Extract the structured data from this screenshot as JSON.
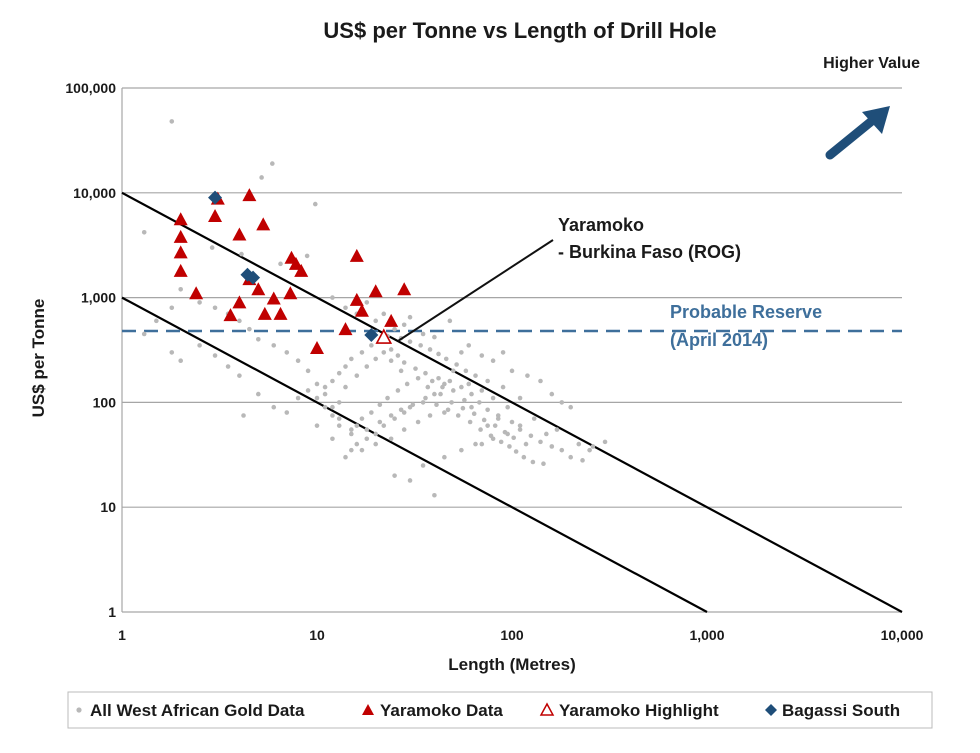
{
  "chart_data": {
    "type": "scatter",
    "title": "US$ per Tonne vs Length of Drill Hole",
    "xlabel": "Length (Metres)",
    "ylabel": "US$ per Tonne",
    "x_scale": "log",
    "y_scale": "log",
    "xlim": [
      1,
      10000
    ],
    "ylim": [
      1,
      100000
    ],
    "x_ticks": [
      "1",
      "10",
      "100",
      "1,000",
      "10,000"
    ],
    "y_ticks": [
      "1",
      "10",
      "100",
      "1,000",
      "10,000",
      "100,000"
    ],
    "x_tick_values": [
      1,
      10,
      100,
      1000,
      10000
    ],
    "y_tick_values": [
      1,
      10,
      100,
      1000,
      10000,
      100000
    ],
    "grid": "horizontal",
    "legend_position": "bottom",
    "annotations": {
      "higher_value": "Higher Value",
      "yaramoko_line1": "Yaramoko",
      "yaramoko_line2": "- Burkina Faso (ROG)",
      "reserve_line1": "Probable Reserve",
      "reserve_line2": "(April 2014)"
    },
    "reference_lines": [
      {
        "points": [
          [
            1,
            10000
          ],
          [
            10000,
            1
          ]
        ],
        "color": "#000000"
      },
      {
        "points": [
          [
            1,
            1000
          ],
          [
            1000,
            1
          ]
        ],
        "color": "#000000"
      }
    ],
    "reserve_value": 480,
    "series": [
      {
        "name": "All West African Gold Data",
        "marker": "dot",
        "color": "#b8b8b8",
        "points": [
          [
            1.8,
            48000
          ],
          [
            5.9,
            19000
          ],
          [
            5.2,
            14000
          ],
          [
            9.8,
            7800
          ],
          [
            1.3,
            4200
          ],
          [
            2.9,
            3000
          ],
          [
            4.1,
            2600
          ],
          [
            6.5,
            2100
          ],
          [
            8.9,
            2500
          ],
          [
            12,
            1000
          ],
          [
            14,
            800
          ],
          [
            18,
            900
          ],
          [
            16,
            700
          ],
          [
            20,
            600
          ],
          [
            22,
            700
          ],
          [
            25,
            500
          ],
          [
            28,
            550
          ],
          [
            30,
            650
          ],
          [
            35,
            450
          ],
          [
            40,
            420
          ],
          [
            48,
            600
          ],
          [
            55,
            300
          ],
          [
            60,
            350
          ],
          [
            70,
            280
          ],
          [
            80,
            250
          ],
          [
            90,
            300
          ],
          [
            100,
            200
          ],
          [
            120,
            180
          ],
          [
            140,
            160
          ],
          [
            160,
            120
          ],
          [
            180,
            100
          ],
          [
            200,
            90
          ],
          [
            130,
            70
          ],
          [
            110,
            60
          ],
          [
            95,
            50
          ],
          [
            80,
            45
          ],
          [
            70,
            40
          ],
          [
            150,
            50
          ],
          [
            170,
            55
          ],
          [
            220,
            40
          ],
          [
            260,
            38
          ],
          [
            300,
            42
          ],
          [
            50,
            200
          ],
          [
            45,
            150
          ],
          [
            40,
            120
          ],
          [
            35,
            100
          ],
          [
            30,
            90
          ],
          [
            28,
            80
          ],
          [
            25,
            70
          ],
          [
            22,
            60
          ],
          [
            20,
            50
          ],
          [
            18,
            45
          ],
          [
            16,
            40
          ],
          [
            15,
            35
          ],
          [
            14,
            30
          ],
          [
            25,
            20
          ],
          [
            40,
            13
          ],
          [
            30,
            18
          ],
          [
            35,
            25
          ],
          [
            45,
            30
          ],
          [
            55,
            35
          ],
          [
            65,
            40
          ],
          [
            75,
            60
          ],
          [
            85,
            70
          ],
          [
            95,
            90
          ],
          [
            60,
            150
          ],
          [
            70,
            130
          ],
          [
            80,
            110
          ],
          [
            50,
            130
          ],
          [
            45,
            80
          ],
          [
            38,
            75
          ],
          [
            33,
            65
          ],
          [
            28,
            55
          ],
          [
            24,
            45
          ],
          [
            20,
            40
          ],
          [
            17,
            35
          ],
          [
            15,
            55
          ],
          [
            13,
            70
          ],
          [
            12,
            90
          ],
          [
            11,
            120
          ],
          [
            10,
            150
          ],
          [
            9,
            200
          ],
          [
            8,
            250
          ],
          [
            7,
            300
          ],
          [
            6,
            350
          ],
          [
            5,
            400
          ],
          [
            4.5,
            500
          ],
          [
            4,
            600
          ],
          [
            3.5,
            700
          ],
          [
            3,
            800
          ],
          [
            2.5,
            900
          ],
          [
            2,
            1200
          ],
          [
            1.8,
            800
          ],
          [
            1.5,
            600
          ],
          [
            1.3,
            450
          ],
          [
            1.8,
            300
          ],
          [
            2,
            250
          ],
          [
            2.5,
            350
          ],
          [
            3,
            280
          ],
          [
            3.5,
            220
          ],
          [
            4,
            180
          ],
          [
            4.2,
            75
          ],
          [
            5,
            120
          ],
          [
            6,
            90
          ],
          [
            7,
            80
          ],
          [
            8,
            110
          ],
          [
            9,
            130
          ],
          [
            10,
            60
          ],
          [
            12,
            45
          ],
          [
            13,
            100
          ],
          [
            14,
            140
          ],
          [
            16,
            180
          ],
          [
            18,
            220
          ],
          [
            20,
            260
          ],
          [
            22,
            300
          ],
          [
            24,
            320
          ],
          [
            26,
            280
          ],
          [
            28,
            240
          ],
          [
            32,
            210
          ],
          [
            36,
            190
          ],
          [
            42,
            170
          ],
          [
            48,
            160
          ],
          [
            55,
            140
          ],
          [
            62,
            120
          ],
          [
            68,
            100
          ],
          [
            75,
            85
          ],
          [
            85,
            75
          ],
          [
            100,
            65
          ],
          [
            110,
            55
          ],
          [
            125,
            48
          ],
          [
            140,
            42
          ],
          [
            160,
            38
          ],
          [
            180,
            35
          ],
          [
            200,
            30
          ],
          [
            230,
            28
          ],
          [
            250,
            35
          ],
          [
            110,
            110
          ],
          [
            90,
            140
          ],
          [
            75,
            160
          ],
          [
            65,
            180
          ],
          [
            58,
            200
          ],
          [
            52,
            230
          ],
          [
            46,
            260
          ],
          [
            42,
            290
          ],
          [
            38,
            320
          ],
          [
            34,
            350
          ],
          [
            30,
            380
          ],
          [
            27,
            410
          ],
          [
            23,
            430
          ],
          [
            19,
            350
          ],
          [
            17,
            300
          ],
          [
            15,
            260
          ],
          [
            14,
            220
          ],
          [
            13,
            190
          ],
          [
            12,
            160
          ],
          [
            11,
            140
          ],
          [
            10,
            110
          ],
          [
            11,
            90
          ],
          [
            12,
            75
          ],
          [
            13,
            60
          ],
          [
            15,
            50
          ],
          [
            18,
            55
          ],
          [
            21,
            65
          ],
          [
            24,
            75
          ],
          [
            27,
            85
          ],
          [
            31,
            95
          ],
          [
            36,
            110
          ],
          [
            41,
            95
          ],
          [
            47,
            85
          ],
          [
            53,
            75
          ],
          [
            61,
            65
          ],
          [
            69,
            55
          ],
          [
            78,
            48
          ],
          [
            88,
            42
          ],
          [
            97,
            38
          ],
          [
            105,
            34
          ],
          [
            115,
            30
          ],
          [
            128,
            27
          ],
          [
            145,
            26
          ],
          [
            62,
            90
          ],
          [
            57,
            105
          ],
          [
            44,
            140
          ],
          [
            39,
            160
          ],
          [
            29,
            150
          ],
          [
            26,
            130
          ],
          [
            23,
            110
          ],
          [
            21,
            95
          ],
          [
            19,
            80
          ],
          [
            17,
            70
          ],
          [
            16,
            60
          ],
          [
            24,
            250
          ],
          [
            27,
            200
          ],
          [
            33,
            170
          ],
          [
            37,
            140
          ],
          [
            43,
            120
          ],
          [
            49,
            100
          ],
          [
            56,
            88
          ],
          [
            64,
            78
          ],
          [
            72,
            68
          ],
          [
            82,
            60
          ],
          [
            92,
            52
          ],
          [
            102,
            46
          ],
          [
            118,
            40
          ]
        ]
      },
      {
        "name": "Yaramoko Data",
        "marker": "triangle",
        "color": "#c00000",
        "points": [
          [
            3.1,
            8800
          ],
          [
            4.5,
            9500
          ],
          [
            2,
            5600
          ],
          [
            3,
            6000
          ],
          [
            5.3,
            5000
          ],
          [
            2,
            3800
          ],
          [
            4,
            4000
          ],
          [
            2,
            2700
          ],
          [
            7.4,
            2400
          ],
          [
            7.8,
            2100
          ],
          [
            8.3,
            1800
          ],
          [
            2,
            1800
          ],
          [
            16,
            2500
          ],
          [
            4.5,
            1500
          ],
          [
            5,
            1200
          ],
          [
            2.4,
            1100
          ],
          [
            7.3,
            1100
          ],
          [
            20,
            1150
          ],
          [
            28,
            1200
          ],
          [
            6,
            980
          ],
          [
            16,
            950
          ],
          [
            4,
            900
          ],
          [
            17,
            750
          ],
          [
            3.6,
            680
          ],
          [
            5.4,
            700
          ],
          [
            6.5,
            700
          ],
          [
            14,
            500
          ],
          [
            24,
            600
          ],
          [
            10,
            330
          ]
        ]
      },
      {
        "name": "Yaramoko Highlight",
        "marker": "triangle-open",
        "color": "#c00000",
        "points": [
          [
            22,
            420
          ]
        ]
      },
      {
        "name": "Bagassi South",
        "marker": "diamond",
        "color": "#1f4e79",
        "points": [
          [
            3,
            9000
          ],
          [
            4.4,
            1650
          ],
          [
            4.7,
            1550
          ],
          [
            19,
            440
          ]
        ]
      }
    ]
  }
}
